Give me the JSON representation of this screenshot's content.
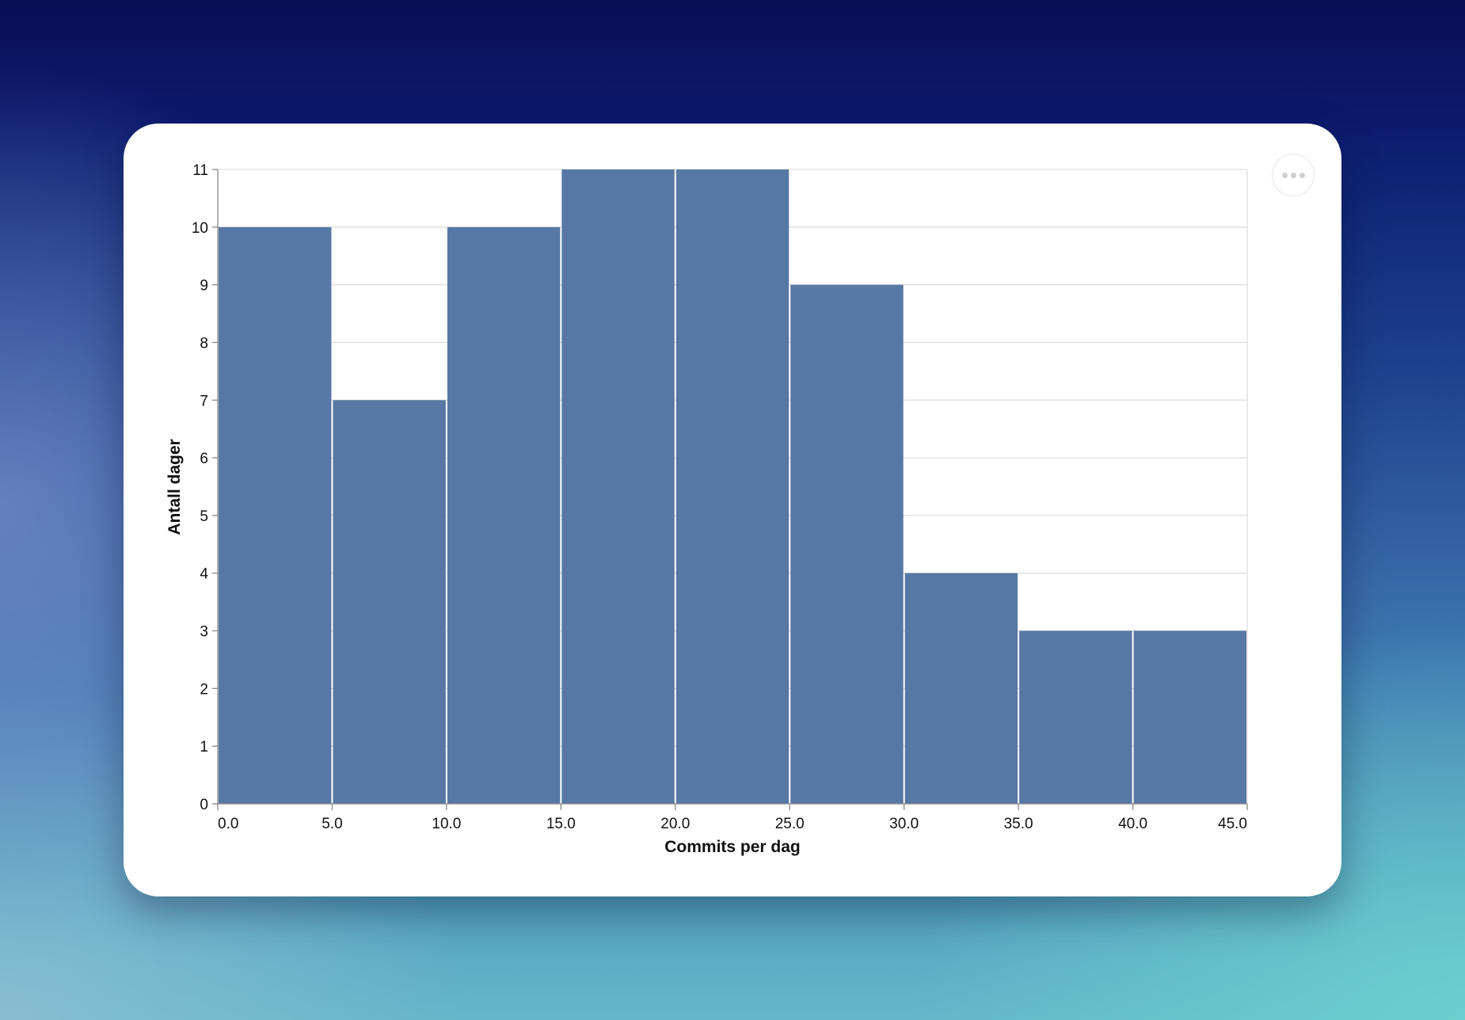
{
  "chart_data": {
    "type": "bar",
    "subtype": "histogram",
    "xlabel": "Commits per dag",
    "ylabel": "Antall dager",
    "bins": [
      {
        "start": 0,
        "end": 5,
        "count": 10
      },
      {
        "start": 5,
        "end": 10,
        "count": 7
      },
      {
        "start": 10,
        "end": 15,
        "count": 10
      },
      {
        "start": 15,
        "end": 20,
        "count": 11
      },
      {
        "start": 20,
        "end": 25,
        "count": 11
      },
      {
        "start": 25,
        "end": 30,
        "count": 9
      },
      {
        "start": 30,
        "end": 35,
        "count": 4
      },
      {
        "start": 35,
        "end": 40,
        "count": 3
      },
      {
        "start": 40,
        "end": 45,
        "count": 3
      }
    ],
    "xlim": [
      0,
      45
    ],
    "ylim": [
      0,
      11
    ],
    "x_ticks": [
      "0.0",
      "5.0",
      "10.0",
      "15.0",
      "20.0",
      "25.0",
      "30.0",
      "35.0",
      "40.0",
      "45.0"
    ],
    "y_ticks": [
      "0",
      "1",
      "2",
      "3",
      "4",
      "5",
      "6",
      "7",
      "8",
      "9",
      "10",
      "11"
    ],
    "grid": true,
    "bar_color": "#5778a4",
    "grid_color": "#dddddd",
    "axis_color": "#888888"
  },
  "menu": {
    "icon": "more-horizontal-icon"
  }
}
